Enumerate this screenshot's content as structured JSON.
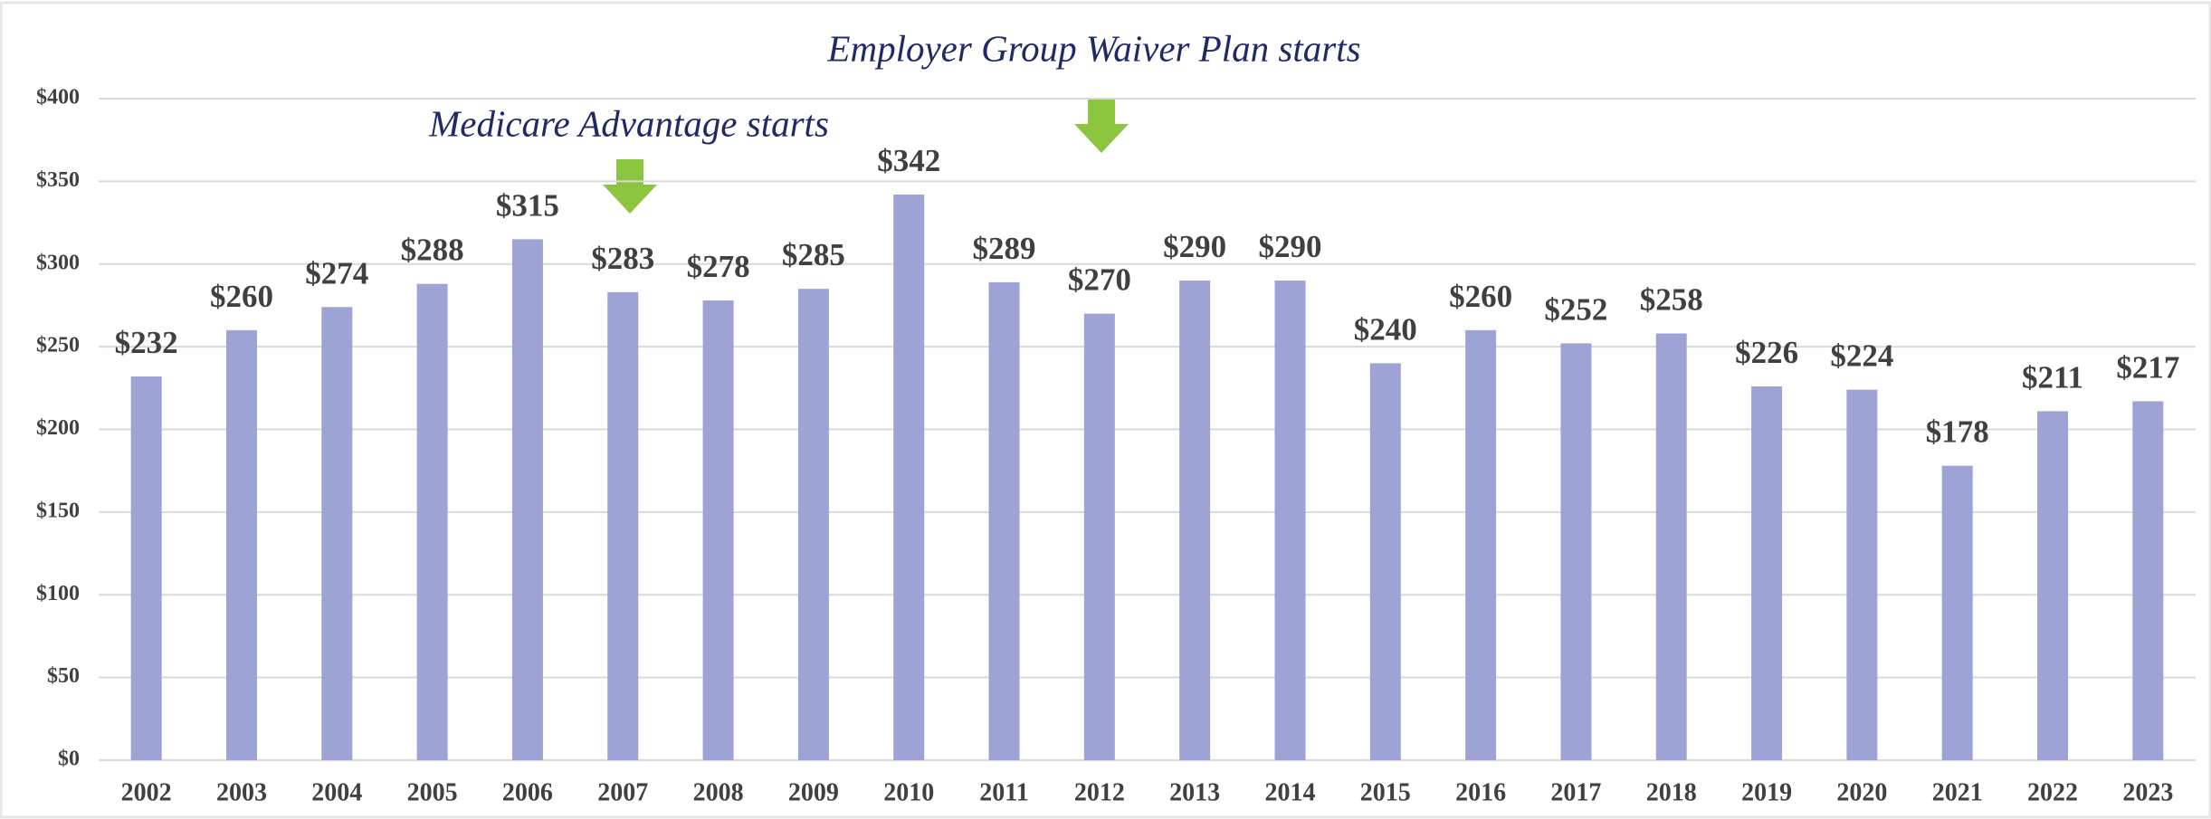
{
  "chart_data": {
    "type": "bar",
    "annotations": [
      "Employer Group Waiver Plan starts",
      "Medicare Advantage starts"
    ],
    "categories": [
      "2002",
      "2003",
      "2004",
      "2005",
      "2006",
      "2007",
      "2008",
      "2009",
      "2010",
      "2011",
      "2012",
      "2013",
      "2014",
      "2015",
      "2016",
      "2017",
      "2018",
      "2019",
      "2020",
      "2021",
      "2022",
      "2023"
    ],
    "values": [
      232,
      260,
      274,
      288,
      315,
      283,
      278,
      285,
      342,
      289,
      270,
      290,
      290,
      240,
      260,
      252,
      258,
      226,
      224,
      178,
      211,
      217
    ],
    "value_labels": [
      "$232",
      "$260",
      "$274",
      "$288",
      "$315",
      "$283",
      "$278",
      "$285",
      "$342",
      "$289",
      "$270",
      "$290",
      "$290",
      "$240",
      "$260",
      "$252",
      "$258",
      "$226",
      "$224",
      "$178",
      "$211",
      "$217"
    ],
    "color": "#9ea3d6",
    "ylim": [
      0,
      400
    ],
    "yticks": [
      {
        "value": 0,
        "label": "$0"
      },
      {
        "value": 50,
        "label": "$50"
      },
      {
        "value": 100,
        "label": "$100"
      },
      {
        "value": 150,
        "label": "$150"
      },
      {
        "value": 200,
        "label": "$200"
      },
      {
        "value": 250,
        "label": "$250"
      },
      {
        "value": 300,
        "label": "$300"
      },
      {
        "value": 350,
        "label": "$350"
      },
      {
        "value": 400,
        "label": "$400"
      }
    ],
    "grid": true
  }
}
